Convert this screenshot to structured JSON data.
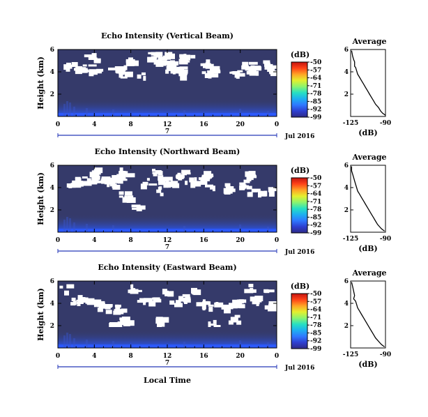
{
  "figure": {
    "xlabel": "Local Time",
    "colorbar_unit": "(dB)",
    "colorbar_ticks": [
      "-50",
      "-57",
      "-64",
      "-71",
      "-78",
      "-85",
      "-92",
      "-99"
    ],
    "date_label": "Jul 2016",
    "day_label": "7",
    "average_title": "Average",
    "average_xlabel": "(dB)",
    "average_xticks": [
      "-125",
      "-90"
    ],
    "colors": {
      "background": "#353a6a",
      "no_data": "#ffffff",
      "near_surface": "#2b59ff",
      "colormap": [
        "#2e2a86",
        "#2e3fd0",
        "#2f78ff",
        "#1eb0f0",
        "#27e0c2",
        "#8cf46e",
        "#e4ef2e",
        "#ffa426",
        "#ff4318",
        "#c41410"
      ]
    }
  },
  "chart_data": [
    {
      "type": "heatmap",
      "title": "Echo Intensity (Vertical Beam)",
      "ylabel": "Height (km)",
      "xlabel": "",
      "x_ticks": [
        "0",
        "4",
        "8",
        "12",
        "16",
        "20",
        "0"
      ],
      "y_ticks": [
        "6",
        "4",
        "2"
      ],
      "xlim": [
        0,
        24
      ],
      "ylim": [
        0,
        6
      ],
      "clim": [
        -99,
        -50
      ],
      "no_data_regions": [
        {
          "t": 3.2,
          "h": 5.7
        },
        {
          "t": 3.5,
          "h": 5.4
        },
        {
          "t": 1.1,
          "h": 4.6
        },
        {
          "t": 1.9,
          "h": 4.3
        },
        {
          "t": 3.0,
          "h": 4.4
        },
        {
          "t": 3.8,
          "h": 4.1
        },
        {
          "t": 5.8,
          "h": 4.2
        },
        {
          "t": 6.8,
          "h": 4.3
        },
        {
          "t": 7.8,
          "h": 5.1
        },
        {
          "t": 9.0,
          "h": 3.9
        },
        {
          "t": 10.3,
          "h": 5.5
        },
        {
          "t": 10.8,
          "h": 5.1
        },
        {
          "t": 11.4,
          "h": 5.6
        },
        {
          "t": 11.9,
          "h": 4.8
        },
        {
          "t": 12.3,
          "h": 4.4
        },
        {
          "t": 12.9,
          "h": 4.2
        },
        {
          "t": 13.6,
          "h": 5.3
        },
        {
          "t": 13.1,
          "h": 4.0
        },
        {
          "t": 14.1,
          "h": 5.7
        },
        {
          "t": 15.9,
          "h": 5.0
        },
        {
          "t": 16.3,
          "h": 4.1
        },
        {
          "t": 17.0,
          "h": 4.3
        },
        {
          "t": 19.3,
          "h": 4.0
        },
        {
          "t": 20.4,
          "h": 4.6
        },
        {
          "t": 21.2,
          "h": 4.3
        },
        {
          "t": 22.7,
          "h": 4.9
        },
        {
          "t": 23.4,
          "h": 4.3
        },
        {
          "t": 6.4,
          "h": 3.9
        }
      ]
    },
    {
      "type": "heatmap",
      "title": "Echo Intensity (Northward Beam)",
      "ylabel": "Height (km)",
      "xlabel": "",
      "x_ticks": [
        "0",
        "4",
        "8",
        "12",
        "16",
        "20",
        "0"
      ],
      "y_ticks": [
        "6",
        "4",
        "2"
      ],
      "xlim": [
        0,
        24
      ],
      "ylim": [
        0,
        6
      ],
      "clim": [
        -99,
        -50
      ],
      "no_data_regions": [
        {
          "t": 1.5,
          "h": 4.4
        },
        {
          "t": 2.3,
          "h": 4.7
        },
        {
          "t": 3.3,
          "h": 4.9
        },
        {
          "t": 4.3,
          "h": 5.1
        },
        {
          "t": 5.2,
          "h": 4.6
        },
        {
          "t": 5.8,
          "h": 4.3
        },
        {
          "t": 6.4,
          "h": 4.9
        },
        {
          "t": 7.2,
          "h": 5.5
        },
        {
          "t": 7.2,
          "h": 3.4
        },
        {
          "t": 8.6,
          "h": 2.3
        },
        {
          "t": 9.6,
          "h": 4.6
        },
        {
          "t": 10.6,
          "h": 5.4
        },
        {
          "t": 11.4,
          "h": 4.7
        },
        {
          "t": 12.3,
          "h": 4.4
        },
        {
          "t": 13.4,
          "h": 5.3
        },
        {
          "t": 14.4,
          "h": 4.6
        },
        {
          "t": 15.4,
          "h": 4.9
        },
        {
          "t": 16.6,
          "h": 4.2
        },
        {
          "t": 18.5,
          "h": 4.1
        },
        {
          "t": 20.3,
          "h": 4.4
        },
        {
          "t": 21.0,
          "h": 3.9
        },
        {
          "t": 20.6,
          "h": 5.3
        },
        {
          "t": 21.9,
          "h": 3.4
        },
        {
          "t": 23.0,
          "h": 3.9
        },
        {
          "t": 3.6,
          "h": 5.6
        },
        {
          "t": 11.0,
          "h": 3.8
        },
        {
          "t": 16.1,
          "h": 5.3
        }
      ]
    },
    {
      "type": "heatmap",
      "title": "Echo Intensity (Eastward Beam)",
      "ylabel": "Height (km)",
      "xlabel": "Local Time",
      "x_ticks": [
        "0",
        "4",
        "8",
        "12",
        "16",
        "20",
        "0"
      ],
      "y_ticks": [
        "6",
        "4",
        "2"
      ],
      "xlim": [
        0,
        24
      ],
      "ylim": [
        0,
        6
      ],
      "clim": [
        -99,
        -50
      ],
      "no_data_regions": [
        {
          "t": 0.7,
          "h": 5.4
        },
        {
          "t": 1.6,
          "h": 4.3
        },
        {
          "t": 2.6,
          "h": 4.7
        },
        {
          "t": 3.6,
          "h": 4.4
        },
        {
          "t": 4.6,
          "h": 3.9
        },
        {
          "t": 5.6,
          "h": 3.5
        },
        {
          "t": 6.6,
          "h": 3.7
        },
        {
          "t": 7.2,
          "h": 2.6
        },
        {
          "t": 8.2,
          "h": 5.4
        },
        {
          "t": 8.9,
          "h": 4.6
        },
        {
          "t": 9.6,
          "h": 4.3
        },
        {
          "t": 10.6,
          "h": 4.6
        },
        {
          "t": 11.6,
          "h": 5.1
        },
        {
          "t": 12.6,
          "h": 4.1
        },
        {
          "t": 13.6,
          "h": 4.7
        },
        {
          "t": 14.4,
          "h": 5.3
        },
        {
          "t": 15.4,
          "h": 4.2
        },
        {
          "t": 16.4,
          "h": 3.9
        },
        {
          "t": 17.4,
          "h": 4.1
        },
        {
          "t": 18.4,
          "h": 3.8
        },
        {
          "t": 19.6,
          "h": 4.1
        },
        {
          "t": 20.6,
          "h": 5.5
        },
        {
          "t": 21.6,
          "h": 4.4
        },
        {
          "t": 22.6,
          "h": 5.1
        },
        {
          "t": 23.2,
          "h": 3.9
        },
        {
          "t": 6.1,
          "h": 1.7
        },
        {
          "t": 11.1,
          "h": 2.5
        },
        {
          "t": 16.8,
          "h": 2.2
        },
        {
          "t": 19.1,
          "h": 2.7
        }
      ]
    },
    {
      "type": "line",
      "title": "Average",
      "xlabel": "(dB)",
      "ylabel": "",
      "x_ticks": [
        "-125",
        "-90"
      ],
      "y_ticks": [
        "6",
        "4",
        "2"
      ],
      "xlim": [
        -125,
        -90
      ],
      "ylim": [
        0,
        6
      ],
      "x": [
        -124,
        -123,
        -122,
        -121,
        -121,
        -120,
        -119,
        -118,
        -116,
        -114,
        -112,
        -110,
        -108,
        -106,
        -104,
        -102,
        -100,
        -97,
        -95,
        -93,
        -90
      ],
      "y": [
        5.9,
        5.4,
        5.1,
        4.9,
        4.5,
        4.4,
        4.1,
        3.8,
        3.5,
        3.2,
        2.9,
        2.6,
        2.3,
        2.0,
        1.7,
        1.4,
        1.1,
        0.8,
        0.5,
        0.3,
        0.1
      ]
    },
    {
      "type": "line",
      "title": "Average",
      "xlabel": "(dB)",
      "ylabel": "",
      "x_ticks": [
        "-125",
        "-90"
      ],
      "y_ticks": [
        "6",
        "4",
        "2"
      ],
      "xlim": [
        -125,
        -90
      ],
      "ylim": [
        0,
        6
      ],
      "x": [
        -124,
        -124,
        -123,
        -122,
        -121,
        -120,
        -119,
        -118,
        -116,
        -114,
        -112,
        -110,
        -108,
        -106,
        -104,
        -102,
        -100,
        -98,
        -96,
        -94,
        -91
      ],
      "y": [
        5.9,
        5.5,
        5.2,
        4.9,
        4.6,
        4.3,
        4.0,
        3.7,
        3.4,
        3.1,
        2.8,
        2.5,
        2.2,
        1.9,
        1.6,
        1.3,
        1.0,
        0.7,
        0.5,
        0.3,
        0.1
      ]
    },
    {
      "type": "line",
      "title": "Average",
      "xlabel": "(dB)",
      "ylabel": "",
      "x_ticks": [
        "-125",
        "-90"
      ],
      "y_ticks": [
        "6",
        "4",
        "2"
      ],
      "xlim": [
        -125,
        -90
      ],
      "ylim": [
        0,
        6
      ],
      "x": [
        -124,
        -123,
        -122,
        -121,
        -122,
        -120,
        -119,
        -118,
        -116,
        -114,
        -112,
        -110,
        -108,
        -106,
        -104,
        -102,
        -100,
        -98,
        -96,
        -94,
        -91
      ],
      "y": [
        5.9,
        5.5,
        5.1,
        4.7,
        4.4,
        4.2,
        3.9,
        3.6,
        3.3,
        3.0,
        2.7,
        2.4,
        2.1,
        1.8,
        1.5,
        1.2,
        0.9,
        0.7,
        0.5,
        0.3,
        0.1
      ]
    }
  ]
}
